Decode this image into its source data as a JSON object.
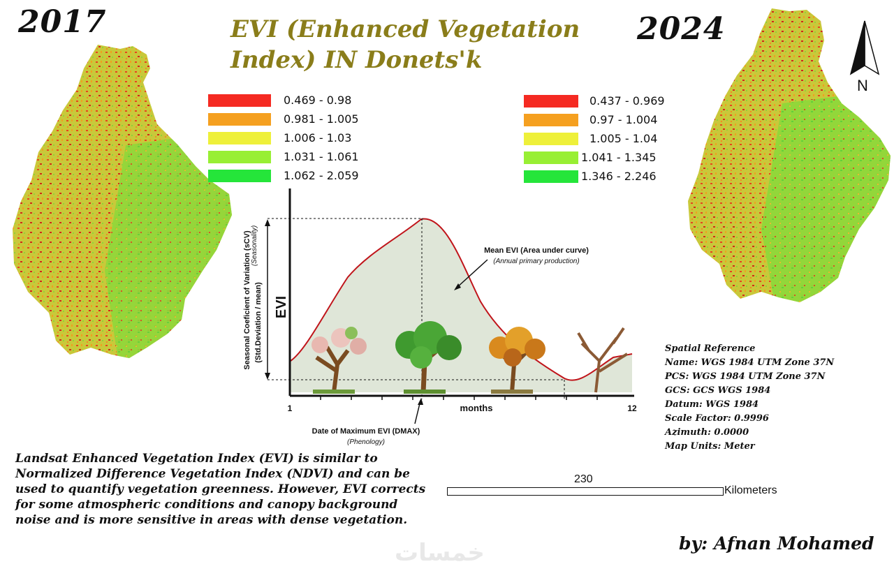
{
  "map": {
    "title": "EVI (Enhanced Vegetation Index)  IN Donets'k",
    "left_year": "2017",
    "right_year": "2024",
    "north_label": "N",
    "legend_2017": [
      {
        "label": "0.469 - 0.98",
        "color": "#f52a22"
      },
      {
        "label": "0.981 - 1.005",
        "color": "#f5a020"
      },
      {
        "label": "1.006 - 1.03",
        "color": "#eef03a"
      },
      {
        "label": "1.031 - 1.061",
        "color": "#98ef34"
      },
      {
        "label": "1.062 - 2.059",
        "color": "#25e53a"
      }
    ],
    "legend_2024": [
      {
        "label": "0.437 - 0.969",
        "color": "#f52a22"
      },
      {
        "label": "0.97 - 1.004",
        "color": "#f5a020"
      },
      {
        "label": "1.005 - 1.04",
        "color": "#eef03a"
      },
      {
        "label": "1.041 - 1.345",
        "color": "#98ef34"
      },
      {
        "label": "1.346 - 2.246",
        "color": "#25e53a"
      }
    ],
    "spatial_reference": [
      "Spatial Reference",
      "Name: WGS 1984 UTM Zone 37N",
      "PCS: WGS 1984 UTM Zone 37N",
      "GCS: GCS WGS 1984",
      "Datum: WGS 1984",
      "Scale Factor: 0.9996",
      "Azimuth: 0.0000",
      "Map Units: Meter"
    ],
    "description": "Landsat Enhanced Vegetation Index (EVI) is similar to Normalized Difference Vegetation Index (NDVI) and can be used to quantify vegetation greenness. However, EVI corrects for some atmospheric conditions and canopy background noise and is more sensitive in areas with dense vegetation.",
    "scale": {
      "value": "230",
      "unit": "Kilometers"
    },
    "author": "by: Afnan Mohamed",
    "watermark": "خمسات"
  },
  "diagram": {
    "y_label": "EVI",
    "scv_label_1": "Seasonal Coeficient of Variation (sCV)",
    "scv_label_2": "(Seasonality)",
    "scv_label_3": "(Std.Deviation / mean)",
    "mean_label": "Mean EVI (Area under curve)",
    "mean_sub": "(Annual primary production)",
    "x_label": "months",
    "x_start": "1",
    "x_end": "12",
    "dmax_label": "Date of Maximum EVI (DMAX)",
    "dmax_sub": "(Phenology)"
  }
}
